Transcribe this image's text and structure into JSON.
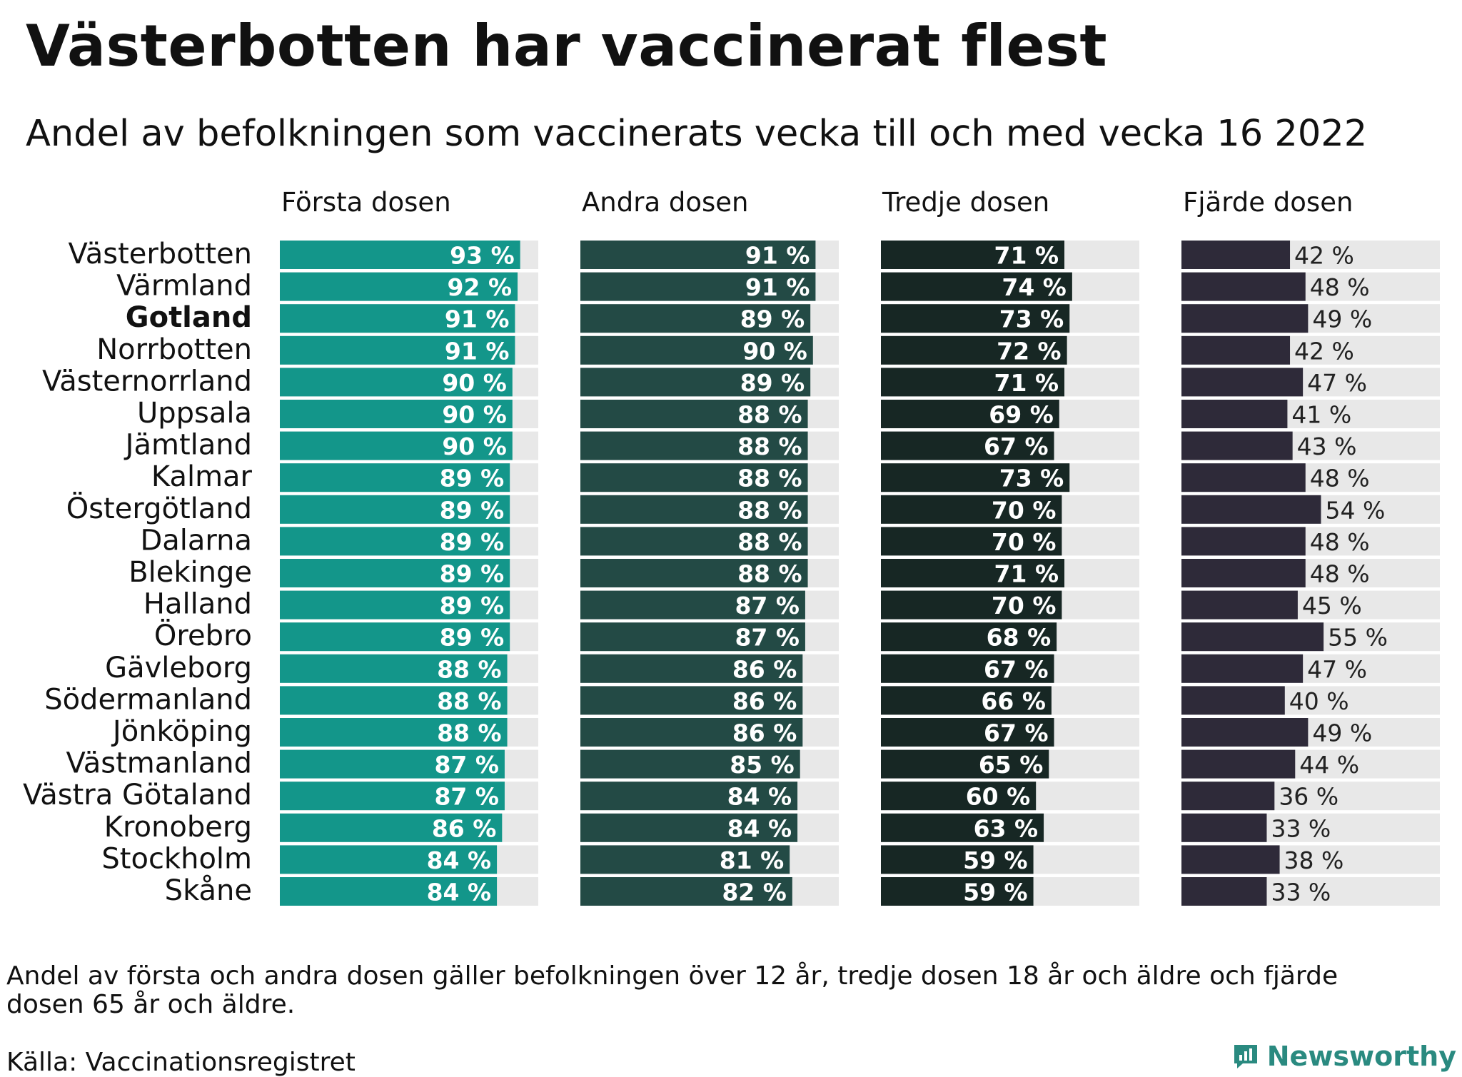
{
  "title": "Västerbotten har vaccinerat flest",
  "subtitle": "Andel av befolkningen som vaccinerats vecka till och med vecka 16 2022",
  "footnote": "Andel av första och andra dosen gäller befolkningen över 12 år, tredje dosen 18 år och äldre och fjärde dosen 65 år och äldre.",
  "source": "Källa: Vaccinationsregistret",
  "brand": "Newsworthy",
  "chart_data": {
    "type": "bar",
    "orientation": "horizontal",
    "layout": "small-multiples",
    "title": "Västerbotten har vaccinerat flest",
    "subtitle": "Andel av befolkningen som vaccinerats vecka till och med vecka 16 2022",
    "value_suffix": " %",
    "xlim": [
      0,
      100
    ],
    "highlight": "Gotland",
    "background_bar_color": "#e8e8e8",
    "categories": [
      "Västerbotten",
      "Värmland",
      "Gotland",
      "Norrbotten",
      "Västernorrland",
      "Uppsala",
      "Jämtland",
      "Kalmar",
      "Östergötland",
      "Dalarna",
      "Blekinge",
      "Halland",
      "Örebro",
      "Gävleborg",
      "Södermanland",
      "Jönköping",
      "Västmanland",
      "Västra Götaland",
      "Kronoberg",
      "Stockholm",
      "Skåne"
    ],
    "series": [
      {
        "name": "Första dosen",
        "color": "#13968a",
        "label_color": "#ffffff",
        "label_inside": true,
        "values": [
          93,
          92,
          91,
          91,
          90,
          90,
          90,
          89,
          89,
          89,
          89,
          89,
          89,
          88,
          88,
          88,
          87,
          87,
          86,
          84,
          84
        ]
      },
      {
        "name": "Andra dosen",
        "color": "#234a45",
        "label_color": "#ffffff",
        "label_inside": true,
        "values": [
          91,
          91,
          89,
          90,
          89,
          88,
          88,
          88,
          88,
          88,
          88,
          87,
          87,
          86,
          86,
          86,
          85,
          84,
          84,
          81,
          82
        ]
      },
      {
        "name": "Tredje dosen",
        "color": "#172724",
        "label_color": "#ffffff",
        "label_inside": true,
        "values": [
          71,
          74,
          73,
          72,
          71,
          69,
          67,
          73,
          70,
          70,
          71,
          70,
          68,
          67,
          66,
          67,
          65,
          60,
          63,
          59,
          59
        ]
      },
      {
        "name": "Fjärde dosen",
        "color": "#2e2a39",
        "label_color": "#222222",
        "label_inside": false,
        "values": [
          42,
          48,
          49,
          42,
          47,
          41,
          43,
          48,
          54,
          48,
          48,
          45,
          55,
          47,
          40,
          49,
          44,
          36,
          33,
          38,
          33
        ]
      }
    ]
  }
}
